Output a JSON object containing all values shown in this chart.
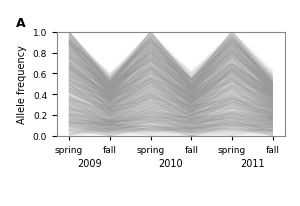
{
  "n_lines": 1750,
  "x_positions": [
    0,
    1,
    2,
    3,
    4,
    5
  ],
  "tick_labels": [
    "spring",
    "fall",
    "spring",
    "fall",
    "spring",
    "fall"
  ],
  "year_labels": [
    [
      "2009",
      0.5
    ],
    [
      "2010",
      2.5
    ],
    [
      "2011",
      4.5
    ]
  ],
  "ylim": [
    0.0,
    1.0
  ],
  "yticks": [
    0.0,
    0.2,
    0.4,
    0.6,
    0.8,
    1.0
  ],
  "ylabel": "Allele frequency",
  "panel_label": "A",
  "line_color": "#999999",
  "line_alpha": 0.06,
  "line_width": 0.5,
  "background_color": "#ffffff",
  "seed": 42,
  "spring_low": 0.03,
  "spring_high": 0.99,
  "fall_low": 0.03,
  "fall_high": 0.55,
  "noise_scale": 0.04
}
